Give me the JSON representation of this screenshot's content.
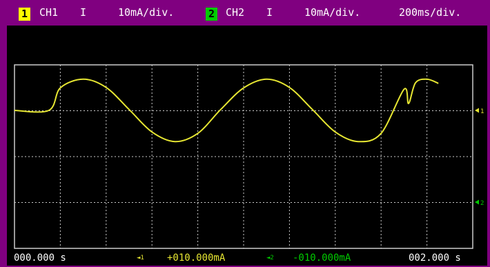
{
  "header": {
    "ch1": {
      "badge": "1",
      "name": "CH1",
      "mode": "I",
      "scale": "10mA/div.",
      "badge_color": "#ffff00"
    },
    "ch2": {
      "badge": "2",
      "name": "CH2",
      "mode": "I",
      "scale": "10mA/div.",
      "badge_color": "#00cc00"
    },
    "timebase": "200ms/div."
  },
  "display": {
    "background": "#000000",
    "frame_color": "#800080",
    "grid_color": "#cccccc",
    "trace_color": "#e6e632",
    "ch1_marker": {
      "icon": "ch1-level-marker-icon",
      "label": "1",
      "color": "#e6e632"
    },
    "ch2_marker": {
      "icon": "ch2-level-marker-icon",
      "label": "2",
      "color": "#00cc00"
    }
  },
  "chart_data": {
    "type": "line",
    "x_unit": "s",
    "xlim": [
      0,
      2
    ],
    "divisions_x": 10,
    "divisions_y": 4,
    "series": [
      {
        "channel": "CH1",
        "unit": "mA",
        "x": [
          0.0,
          0.15,
          0.2,
          0.3,
          0.4,
          0.5,
          0.6,
          0.7,
          0.8,
          0.9,
          1.0,
          1.1,
          1.2,
          1.3,
          1.4,
          1.5,
          1.6,
          1.7,
          1.72,
          1.75,
          1.8,
          1.85
        ],
        "y": [
          0.0,
          0.0,
          4.9,
          6.8,
          5.0,
          0.2,
          -4.7,
          -6.8,
          -5.0,
          0.2,
          4.9,
          6.8,
          5.0,
          0.2,
          -4.7,
          -6.8,
          -5.0,
          4.6,
          1.5,
          6.0,
          6.8,
          5.9
        ]
      }
    ]
  },
  "footer": {
    "start_time": "000.000 s",
    "ch1_marker_label": "◄1",
    "ch1_offset": "+010.000mA",
    "ch2_marker_label": "◄2",
    "ch2_offset": "-010.000mA",
    "end_time": "002.000 s"
  }
}
